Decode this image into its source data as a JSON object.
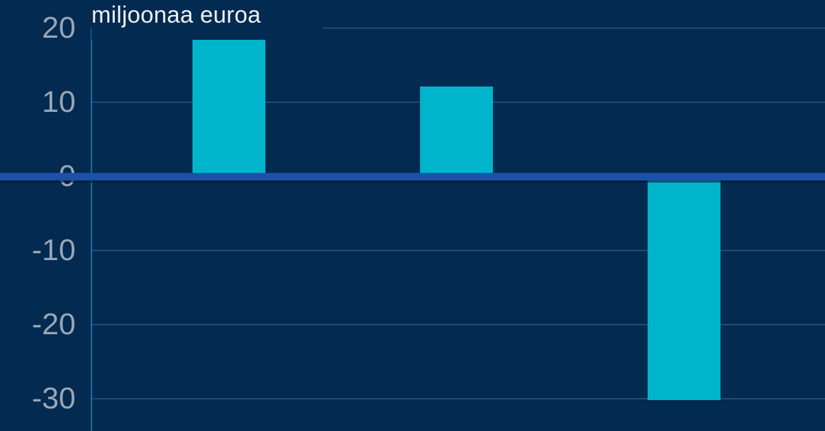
{
  "title": {
    "text": "miljoonaa euroa"
  },
  "colors": {
    "background": "#032a50",
    "bar": "#00b4cc",
    "gridline": "#1a4e7c",
    "axis_line": "#1e6ca8",
    "zero_line": "#1d50a8",
    "tick_label": "#9aa6b4",
    "title_text": "#edf1f5"
  },
  "chart_data": {
    "type": "bar",
    "categories": [
      "",
      "",
      ""
    ],
    "values": [
      18.8,
      12.1,
      -30.2
    ],
    "title": "miljoonaa euroa",
    "xlabel": "",
    "ylabel": "miljoonaa euroa",
    "ylim": [
      -34.4,
      23.8
    ],
    "yticks": [
      20,
      10,
      0,
      -10,
      -20,
      -30
    ],
    "grid": true,
    "legend": false
  }
}
